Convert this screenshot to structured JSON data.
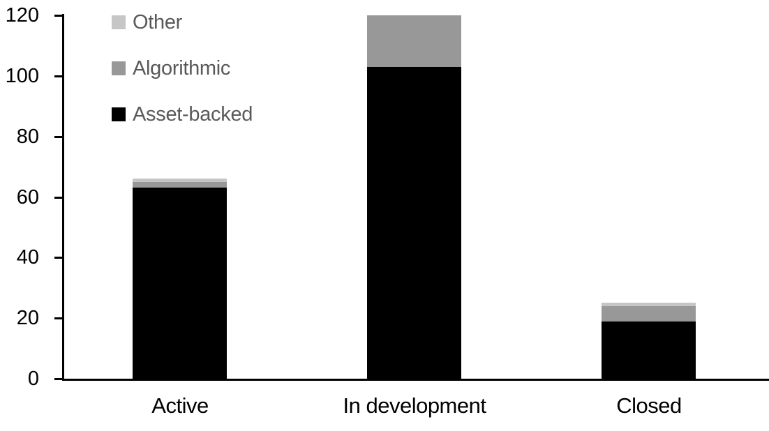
{
  "chart_data": {
    "type": "bar",
    "stacked": true,
    "title": "",
    "xlabel": "",
    "ylabel": "",
    "categories": [
      "Active",
      "In development",
      "Closed"
    ],
    "series": [
      {
        "name": "Asset-backed",
        "color": "#000000",
        "values": [
          63,
          103,
          19
        ]
      },
      {
        "name": "Algorithmic",
        "color": "#989898",
        "values": [
          2,
          17,
          5
        ]
      },
      {
        "name": "Other",
        "color": "#C6C6C6",
        "values": [
          1,
          0,
          1
        ]
      }
    ],
    "stack_totals": [
      66,
      120,
      25
    ],
    "ylim": [
      0,
      120
    ],
    "yticks": [
      0,
      20,
      40,
      60,
      80,
      100,
      120
    ],
    "grid": false,
    "legend": {
      "position": "top-left",
      "order": [
        "Other",
        "Algorithmic",
        "Asset-backed"
      ]
    },
    "colors": {
      "axis": "#000000",
      "tick_label": "#000000",
      "category_label": "#000000",
      "legend_text": "#595959",
      "background": "#FFFFFF"
    }
  }
}
